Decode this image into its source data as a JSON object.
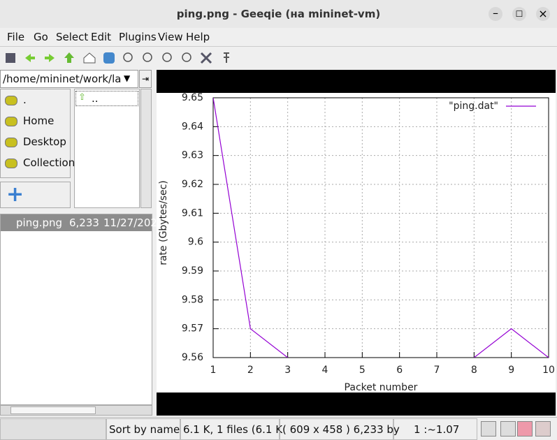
{
  "window": {
    "title": "ping.png - Geeqie (на mininet-vm)"
  },
  "menu": [
    "File",
    "Go",
    "Select",
    "Edit",
    "Plugins",
    "View",
    "Help"
  ],
  "path": "/home/mininet/work/la",
  "bookmarks": [
    ".",
    "Home",
    "Desktop",
    "Collection"
  ],
  "tree": [
    ".."
  ],
  "files": [
    {
      "name": "ping.png",
      "size": "6,233",
      "date": "11/27/202"
    }
  ],
  "status": {
    "sort": "Sort by name",
    "count": "6.1 K, 1 files (6.1 K",
    "info": "( 609 x 458 ) 6,233 by",
    "zoom": "1 :~1.07"
  },
  "chart_data": {
    "type": "line",
    "xlabel": "Packet number",
    "ylabel": "rate (Gbytes/sec)",
    "x": [
      1,
      2,
      3,
      4,
      5,
      6,
      7,
      8,
      9,
      10
    ],
    "series": [
      {
        "name": "\"ping.dat\"",
        "color": "#9400d3",
        "values": [
          9.65,
          9.57,
          9.56,
          null,
          null,
          null,
          null,
          9.56,
          9.57,
          9.56
        ]
      }
    ],
    "xlim": [
      1,
      10
    ],
    "xticks": [
      1,
      2,
      3,
      4,
      5,
      6,
      7,
      8,
      9,
      10
    ],
    "ylim": [
      9.56,
      9.65
    ],
    "yticks": [
      9.56,
      9.57,
      9.58,
      9.59,
      9.6,
      9.61,
      9.62,
      9.63,
      9.64,
      9.65
    ],
    "grid": true,
    "legend": "top-right"
  }
}
